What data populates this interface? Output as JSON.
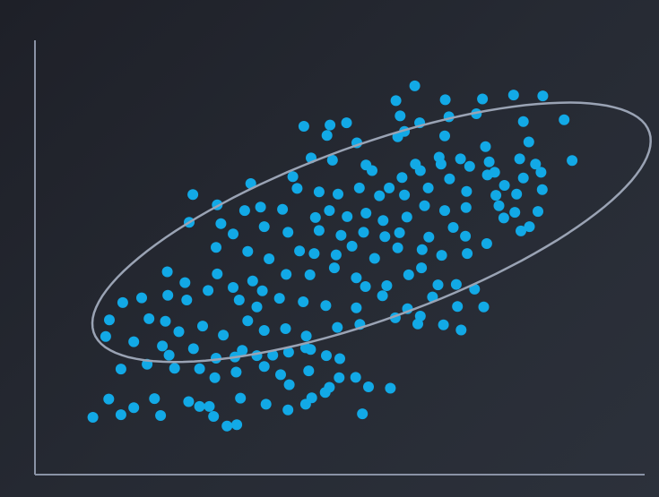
{
  "chart_data": {
    "type": "scatter",
    "title": "",
    "xlabel": "",
    "ylabel": "",
    "xlim": [
      0,
      100
    ],
    "ylim": [
      0,
      100
    ],
    "grid": false,
    "legend": "none",
    "colors": {
      "background": "#262a33",
      "axis": "#8a93a6",
      "point": "#12a9e6",
      "ellipse": "#9aa3b4"
    },
    "confidence_ellipse": {
      "center": [
        55.2,
        55.8
      ],
      "angle_deg": 29,
      "semi_axis_major": 51.3,
      "semi_axis_minor": 18.9
    },
    "series": [
      {
        "points": [
          [
            62.3,
            89.5
          ],
          [
            59.2,
            86.1
          ],
          [
            67.3,
            86.3
          ],
          [
            73.4,
            86.5
          ],
          [
            78.5,
            87.4
          ],
          [
            83.3,
            87.2
          ],
          [
            59.9,
            82.6
          ],
          [
            63.1,
            81.0
          ],
          [
            67.9,
            82.4
          ],
          [
            72.4,
            83.1
          ],
          [
            80.1,
            81.3
          ],
          [
            86.8,
            81.7
          ],
          [
            44.1,
            80.2
          ],
          [
            48.4,
            80.5
          ],
          [
            51.1,
            81.0
          ],
          [
            47.9,
            78.1
          ],
          [
            52.8,
            76.4
          ],
          [
            59.5,
            77.8
          ],
          [
            60.6,
            79.0
          ],
          [
            67.2,
            78.0
          ],
          [
            73.9,
            75.5
          ],
          [
            81.0,
            76.6
          ],
          [
            45.3,
            72.9
          ],
          [
            48.8,
            72.4
          ],
          [
            54.3,
            71.3
          ],
          [
            62.4,
            71.5
          ],
          [
            66.3,
            73.1
          ],
          [
            69.8,
            72.7
          ],
          [
            74.5,
            72.0
          ],
          [
            75.4,
            69.6
          ],
          [
            79.5,
            72.7
          ],
          [
            82.1,
            71.5
          ],
          [
            83.0,
            69.6
          ],
          [
            88.1,
            72.3
          ],
          [
            42.3,
            68.6
          ],
          [
            55.3,
            70.0
          ],
          [
            60.2,
            68.4
          ],
          [
            63.2,
            70.0
          ],
          [
            66.6,
            71.5
          ],
          [
            71.3,
            71.0
          ],
          [
            74.2,
            69.0
          ],
          [
            77.0,
            66.6
          ],
          [
            80.1,
            68.3
          ],
          [
            35.4,
            67.0
          ],
          [
            43.0,
            65.9
          ],
          [
            46.6,
            65.1
          ],
          [
            49.7,
            64.6
          ],
          [
            53.2,
            66.0
          ],
          [
            56.5,
            64.2
          ],
          [
            58.1,
            66.0
          ],
          [
            60.6,
            64.4
          ],
          [
            64.5,
            66.0
          ],
          [
            68.0,
            68.1
          ],
          [
            70.8,
            65.2
          ],
          [
            75.6,
            64.3
          ],
          [
            79.0,
            64.6
          ],
          [
            83.2,
            65.6
          ],
          [
            25.9,
            64.5
          ],
          [
            29.9,
            62.1
          ],
          [
            34.4,
            60.8
          ],
          [
            37.0,
            61.6
          ],
          [
            40.6,
            61.1
          ],
          [
            46.0,
            59.2
          ],
          [
            48.3,
            60.8
          ],
          [
            51.2,
            59.4
          ],
          [
            54.3,
            60.2
          ],
          [
            57.1,
            58.5
          ],
          [
            61.0,
            59.3
          ],
          [
            63.9,
            61.9
          ],
          [
            67.2,
            60.8
          ],
          [
            70.7,
            61.5
          ],
          [
            76.1,
            61.9
          ],
          [
            76.9,
            59.1
          ],
          [
            78.7,
            60.4
          ],
          [
            82.5,
            60.6
          ],
          [
            25.3,
            58.1
          ],
          [
            30.5,
            57.8
          ],
          [
            32.5,
            55.4
          ],
          [
            37.6,
            57.1
          ],
          [
            41.5,
            55.8
          ],
          [
            46.6,
            56.2
          ],
          [
            50.2,
            55.1
          ],
          [
            53.9,
            55.8
          ],
          [
            57.4,
            54.8
          ],
          [
            59.8,
            55.7
          ],
          [
            64.6,
            54.7
          ],
          [
            68.6,
            56.9
          ],
          [
            70.6,
            54.9
          ],
          [
            74.1,
            53.2
          ],
          [
            79.7,
            56.1
          ],
          [
            81.1,
            57.1
          ],
          [
            29.7,
            52.3
          ],
          [
            34.9,
            51.4
          ],
          [
            38.4,
            49.7
          ],
          [
            43.4,
            51.5
          ],
          [
            45.8,
            50.9
          ],
          [
            49.4,
            50.6
          ],
          [
            52.0,
            52.6
          ],
          [
            55.7,
            49.8
          ],
          [
            59.5,
            52.2
          ],
          [
            63.5,
            51.8
          ],
          [
            66.7,
            50.5
          ],
          [
            70.9,
            50.9
          ],
          [
            21.7,
            46.7
          ],
          [
            24.6,
            44.2
          ],
          [
            29.9,
            46.2
          ],
          [
            32.5,
            43.1
          ],
          [
            35.7,
            44.6
          ],
          [
            37.3,
            42.3
          ],
          [
            41.2,
            46.1
          ],
          [
            45.1,
            46.0
          ],
          [
            49.1,
            47.6
          ],
          [
            52.7,
            45.3
          ],
          [
            54.2,
            43.3
          ],
          [
            57.7,
            43.5
          ],
          [
            61.3,
            46.0
          ],
          [
            63.4,
            47.6
          ],
          [
            66.1,
            43.7
          ],
          [
            69.1,
            43.8
          ],
          [
            72.1,
            42.7
          ],
          [
            17.5,
            40.7
          ],
          [
            21.8,
            41.3
          ],
          [
            24.9,
            40.2
          ],
          [
            28.4,
            42.4
          ],
          [
            33.5,
            40.2
          ],
          [
            36.4,
            38.6
          ],
          [
            40.1,
            40.6
          ],
          [
            44.0,
            39.8
          ],
          [
            47.7,
            38.9
          ],
          [
            52.7,
            38.4
          ],
          [
            57.0,
            41.2
          ],
          [
            61.1,
            38.2
          ],
          [
            63.2,
            36.5
          ],
          [
            65.2,
            40.9
          ],
          [
            69.3,
            38.7
          ],
          [
            73.6,
            38.6
          ],
          [
            12.2,
            35.6
          ],
          [
            14.4,
            39.6
          ],
          [
            18.7,
            35.9
          ],
          [
            21.4,
            35.3
          ],
          [
            23.6,
            32.9
          ],
          [
            27.5,
            34.2
          ],
          [
            30.9,
            32.1
          ],
          [
            34.9,
            35.4
          ],
          [
            37.6,
            33.2
          ],
          [
            41.1,
            33.6
          ],
          [
            44.5,
            31.9
          ],
          [
            49.6,
            33.9
          ],
          [
            53.3,
            34.6
          ],
          [
            59.1,
            36.1
          ],
          [
            62.8,
            34.7
          ],
          [
            67.0,
            34.5
          ],
          [
            69.9,
            33.3
          ],
          [
            11.6,
            31.8
          ],
          [
            16.2,
            30.6
          ],
          [
            20.9,
            29.6
          ],
          [
            22.0,
            27.5
          ],
          [
            26.0,
            29.0
          ],
          [
            29.7,
            26.8
          ],
          [
            32.8,
            27.1
          ],
          [
            34.0,
            28.6
          ],
          [
            36.4,
            27.4
          ],
          [
            39.0,
            27.5
          ],
          [
            41.6,
            28.2
          ],
          [
            44.4,
            29.2
          ],
          [
            45.2,
            28.8
          ],
          [
            47.8,
            27.4
          ],
          [
            50.0,
            26.7
          ],
          [
            14.1,
            24.3
          ],
          [
            18.4,
            25.4
          ],
          [
            22.9,
            24.5
          ],
          [
            27.0,
            24.4
          ],
          [
            29.5,
            22.3
          ],
          [
            33.0,
            23.6
          ],
          [
            37.6,
            24.9
          ],
          [
            40.3,
            23.0
          ],
          [
            41.7,
            20.7
          ],
          [
            44.9,
            23.9
          ],
          [
            48.3,
            20.1
          ],
          [
            49.9,
            22.3
          ],
          [
            52.6,
            22.4
          ],
          [
            54.7,
            20.2
          ],
          [
            58.3,
            19.9
          ],
          [
            12.1,
            17.4
          ],
          [
            16.2,
            15.4
          ],
          [
            19.6,
            17.5
          ],
          [
            25.2,
            16.8
          ],
          [
            27.0,
            15.7
          ],
          [
            28.6,
            15.7
          ],
          [
            33.7,
            17.6
          ],
          [
            37.9,
            16.2
          ],
          [
            41.5,
            14.9
          ],
          [
            44.4,
            16.2
          ],
          [
            45.4,
            17.7
          ],
          [
            47.6,
            18.9
          ],
          [
            53.7,
            14.0
          ],
          [
            9.5,
            13.2
          ],
          [
            14.1,
            13.8
          ],
          [
            20.6,
            13.6
          ],
          [
            29.3,
            13.4
          ],
          [
            33.1,
            11.5
          ],
          [
            31.5,
            11.2
          ]
        ]
      }
    ]
  }
}
